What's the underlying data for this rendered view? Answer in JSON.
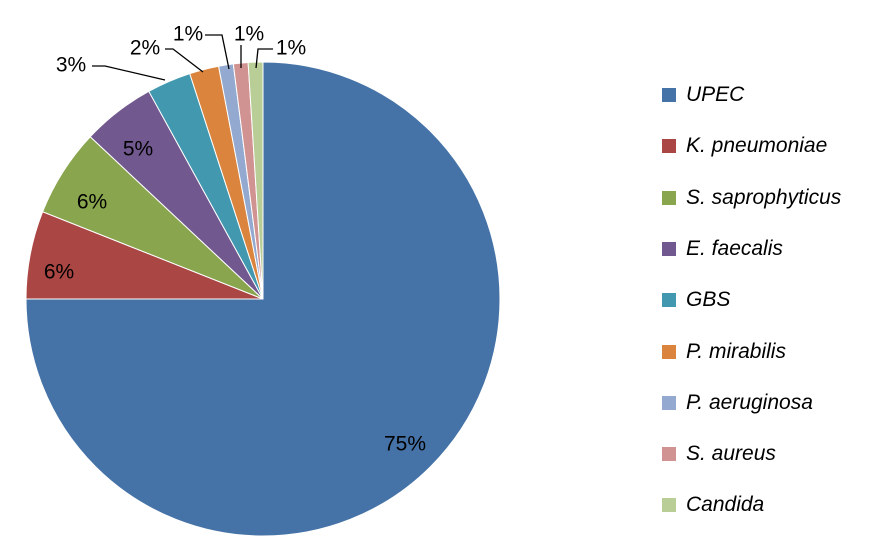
{
  "chart_data": {
    "type": "pie",
    "start_angle_deg": 0,
    "direction": "clockwise",
    "series": [
      {
        "name": "UPEC",
        "value": 75,
        "label": "75%",
        "color": "#4572A7"
      },
      {
        "name": "K. pneumoniae",
        "value": 6,
        "label": "6%",
        "color": "#AA4643"
      },
      {
        "name": "S. saprophyticus",
        "value": 6,
        "label": "6%",
        "color": "#89A54E"
      },
      {
        "name": "E. faecalis",
        "value": 5,
        "label": "5%",
        "color": "#71588F"
      },
      {
        "name": "GBS",
        "value": 3,
        "label": "3%",
        "color": "#4198AF"
      },
      {
        "name": "P. mirabilis",
        "value": 2,
        "label": "2%",
        "color": "#DB843D"
      },
      {
        "name": "P. aeruginosa",
        "value": 1,
        "label": "1%",
        "color": "#93A9CF"
      },
      {
        "name": "S. aureus",
        "value": 1,
        "label": "1%",
        "color": "#D19392"
      },
      {
        "name": "Candida",
        "value": 1,
        "label": "1%",
        "color": "#B9CD96"
      }
    ],
    "legend_position": "right"
  }
}
